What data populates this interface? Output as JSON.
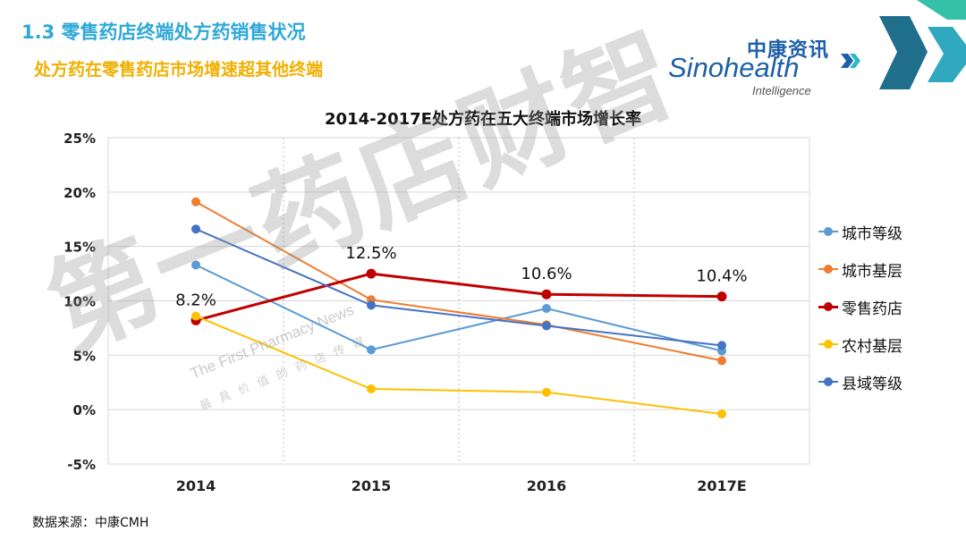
{
  "header": {
    "title": "1.3 零售药店终端处方药销售状况",
    "subtitle": "处方药在零售药店市场增速超其他终端"
  },
  "logo": {
    "cn": "中康资讯",
    "en": "Sinohealth",
    "sub": "Intelligence"
  },
  "watermark": {
    "big": "第一药店财智",
    "small": "The First Pharmacy News",
    "small_cn": "最具价值的药店传媒"
  },
  "chart_data": {
    "type": "line",
    "title": "2014-2017E处方药在五大终端市场增长率",
    "categories": [
      "2014",
      "2015",
      "2016",
      "2017E"
    ],
    "y_ticks": [
      "-5%",
      "0%",
      "5%",
      "10%",
      "15%",
      "20%",
      "25%"
    ],
    "ylim": [
      -5,
      25
    ],
    "xlabel": "",
    "ylabel": "",
    "series": [
      {
        "name": "城市等级",
        "color": "#5b9bd5",
        "width": 2,
        "values": [
          13.3,
          5.5,
          9.3,
          5.4
        ]
      },
      {
        "name": "城市基层",
        "color": "#ed7d31",
        "width": 2,
        "values": [
          19.1,
          10.1,
          7.8,
          4.5
        ]
      },
      {
        "name": "零售药店",
        "color": "#c00000",
        "width": 3,
        "values": [
          8.2,
          12.5,
          10.6,
          10.4
        ],
        "labels": [
          "8.2%",
          "12.5%",
          "10.6%",
          "10.4%"
        ]
      },
      {
        "name": "农村基层",
        "color": "#ffc000",
        "width": 2,
        "values": [
          8.6,
          1.9,
          1.6,
          -0.4
        ]
      },
      {
        "name": "县域等级",
        "color": "#4472c4",
        "width": 2,
        "values": [
          16.6,
          9.6,
          7.7,
          5.9
        ]
      }
    ],
    "legend_position": "right",
    "grid": {
      "horizontal": true,
      "vertical": "dashed"
    }
  },
  "footer": {
    "source": "数据来源：中康CMH"
  }
}
